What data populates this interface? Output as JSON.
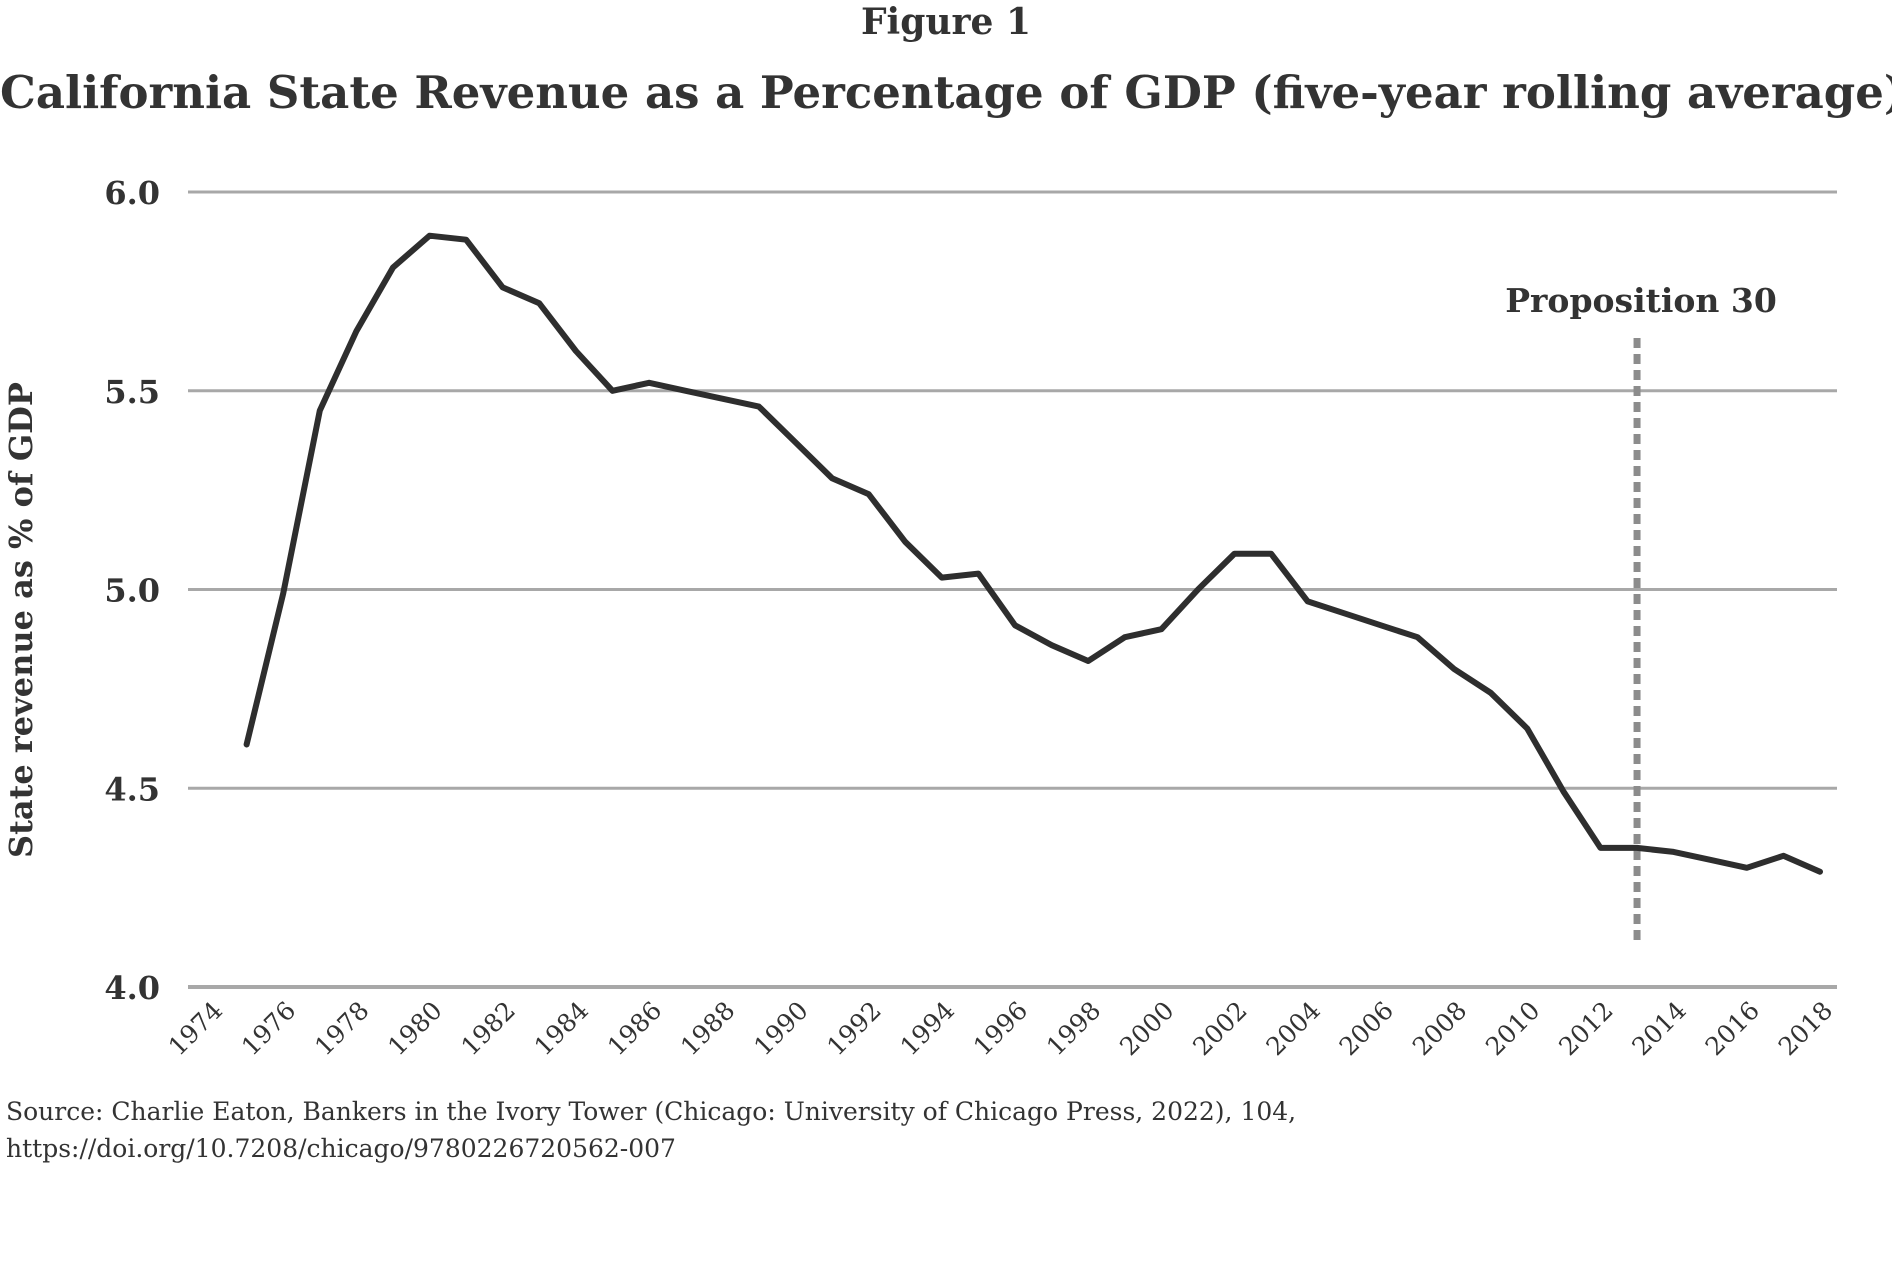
{
  "figure_label": "Figure 1",
  "chart_data": {
    "type": "line",
    "title": "California State Revenue as a Percentage of GDP (five-year rolling average)",
    "xlabel": "",
    "ylabel": "State revenue as % of GDP",
    "ylim": [
      4.0,
      6.0
    ],
    "yticks": [
      "4.0",
      "4.5",
      "5.0",
      "5.5",
      "6.0"
    ],
    "ytick_values": [
      4.0,
      4.5,
      5.0,
      5.5,
      6.0
    ],
    "xlim": [
      1974,
      2018
    ],
    "xticks": [
      "1974",
      "1976",
      "1978",
      "1980",
      "1982",
      "1984",
      "1986",
      "1988",
      "1990",
      "1992",
      "1994",
      "1996",
      "1998",
      "2000",
      "2002",
      "2004",
      "2006",
      "2008",
      "2010",
      "2012",
      "2014",
      "2016",
      "2018"
    ],
    "grid": true,
    "series": [
      {
        "name": "State revenue as % of GDP",
        "x": [
          1975,
          1976,
          1977,
          1978,
          1979,
          1980,
          1981,
          1982,
          1983,
          1984,
          1985,
          1986,
          1987,
          1988,
          1989,
          1990,
          1991,
          1992,
          1993,
          1994,
          1995,
          1996,
          1997,
          1998,
          1999,
          2000,
          2001,
          2002,
          2003,
          2004,
          2005,
          2006,
          2007,
          2008,
          2009,
          2010,
          2011,
          2012,
          2013,
          2014,
          2015,
          2016,
          2017,
          2018
        ],
        "values": [
          4.61,
          4.99,
          5.45,
          5.65,
          5.81,
          5.89,
          5.88,
          5.76,
          5.72,
          5.6,
          5.5,
          5.52,
          5.5,
          5.48,
          5.46,
          5.37,
          5.28,
          5.24,
          5.12,
          5.03,
          5.04,
          4.91,
          4.86,
          4.82,
          4.88,
          4.9,
          5.0,
          5.09,
          5.09,
          4.97,
          4.94,
          4.91,
          4.88,
          4.8,
          4.74,
          4.65,
          4.49,
          4.35,
          4.35,
          4.34,
          4.32,
          4.3,
          4.33,
          4.29
        ]
      }
    ],
    "annotations": [
      {
        "text": "Proposition 30",
        "x": 2013,
        "style": "dashed-vertical-line"
      }
    ]
  },
  "source": {
    "line1": "Source: Charlie Eaton, Bankers in the Ivory Tower (Chicago: University of Chicago Press, 2022), 104,",
    "line2": "https://doi.org/10.7208/chicago/9780226720562-007"
  },
  "colors": {
    "line": "#2e2e2e",
    "gridline": "#a8a8a8",
    "annotation_line": "#8c8c8c",
    "text": "#333333"
  }
}
